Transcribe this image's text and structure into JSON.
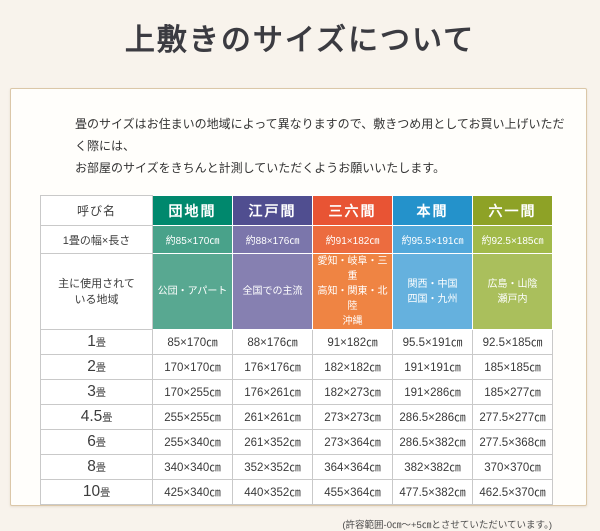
{
  "page": {
    "title": "上敷きのサイズについて",
    "intro_line1": "畳のサイズはお住まいの地域によって異なりますので、敷きつめ用としてお買い上げいただく際には、",
    "intro_line2": "お部屋のサイズをきちんと計測していただくようお願いいたします。",
    "note": "(許容範囲-0㎝～+5㎝とさせていただいています。)"
  },
  "colors": {
    "page_bg": "#f8f3ec",
    "box_bg": "#fffefb",
    "box_border": "#dbc7a8",
    "grid_border": "#c9c9c9",
    "danchima_header": "#00886d",
    "edoma_header": "#504e90",
    "sabroku_header": "#e85434",
    "honma_header": "#2492cb",
    "rokuichi_header": "#8ea226"
  },
  "table": {
    "corner": "呼び名",
    "unit": "畳",
    "size_row_label": "1畳の幅×長さ",
    "region_row_label": "主に使用されて\nいる地域",
    "columns": [
      {
        "label": "団地間",
        "header_color": "#00886d",
        "size_color": "#49a28a",
        "region_color": "#58a891",
        "size": "約85×170㎝",
        "region": "公団・アパート"
      },
      {
        "label": "江戸間",
        "header_color": "#504e90",
        "size_color": "#7b76ab",
        "region_color": "#8680b1",
        "size": "約88×176㎝",
        "region": "全国での主流"
      },
      {
        "label": "三六間",
        "header_color": "#e85434",
        "size_color": "#ec6c3f",
        "region_color": "#ef8443",
        "size": "約91×182㎝",
        "region": "愛知・岐阜・三重\n高知・関東・北陸\n沖縄"
      },
      {
        "label": "本間",
        "header_color": "#2492cb",
        "size_color": "#52a8da",
        "region_color": "#65b1de",
        "size": "約95.5×191㎝",
        "region": "関西・中国\n四国・九州"
      },
      {
        "label": "六一間",
        "header_color": "#8ea226",
        "size_color": "#a2ba4a",
        "region_color": "#aabf5c",
        "size": "約92.5×185㎝",
        "region": "広島・山陰\n瀬戸内"
      }
    ],
    "rows": [
      {
        "label": "1",
        "values": [
          "85×170㎝",
          "88×176㎝",
          "91×182㎝",
          "95.5×191㎝",
          "92.5×185㎝"
        ]
      },
      {
        "label": "2",
        "values": [
          "170×170㎝",
          "176×176㎝",
          "182×182㎝",
          "191×191㎝",
          "185×185㎝"
        ]
      },
      {
        "label": "3",
        "values": [
          "170×255㎝",
          "176×261㎝",
          "182×273㎝",
          "191×286㎝",
          "185×277㎝"
        ]
      },
      {
        "label": "4.5",
        "values": [
          "255×255㎝",
          "261×261㎝",
          "273×273㎝",
          "286.5×286㎝",
          "277.5×277㎝"
        ]
      },
      {
        "label": "6",
        "values": [
          "255×340㎝",
          "261×352㎝",
          "273×364㎝",
          "286.5×382㎝",
          "277.5×368㎝"
        ]
      },
      {
        "label": "8",
        "values": [
          "340×340㎝",
          "352×352㎝",
          "364×364㎝",
          "382×382㎝",
          "370×370㎝"
        ]
      },
      {
        "label": "10",
        "values": [
          "425×340㎝",
          "440×352㎝",
          "455×364㎝",
          "477.5×382㎝",
          "462.5×370㎝"
        ]
      }
    ]
  }
}
